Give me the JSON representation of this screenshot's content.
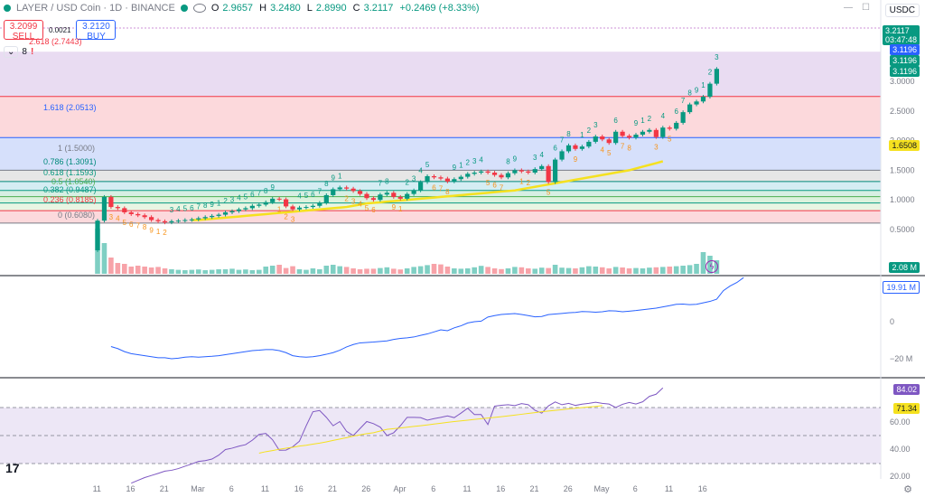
{
  "header": {
    "symbol": "LAYER / USD Coin · 1D · BINANCE",
    "o_label": "O",
    "o": "2.9657",
    "h_label": "H",
    "h": "3.2480",
    "l_label": "L",
    "l": "2.8990",
    "c_label": "C",
    "c": "3.2117",
    "change": "+0.2469 (+8.33%)"
  },
  "trade": {
    "sell_price": "3.2099",
    "sell_label": "SELL",
    "spread": "0.0021",
    "buy_price": "3.2120",
    "buy_label": "BUY"
  },
  "indicators_bar": {
    "count": "8",
    "alert": "!"
  },
  "currency": "USDC",
  "colors": {
    "up": "#089981",
    "down": "#f23645",
    "sma": "#f5e11f",
    "obv": "#2962ff",
    "rsi": "#7e57c2"
  },
  "price_tags": {
    "last": "3.2117",
    "countdown": "03:47:48",
    "t1": "3.1196",
    "t2": "3.1196",
    "t3": "3.1196",
    "sma": "1.6508",
    "volume": "2.08 M",
    "obv": "19.91 M",
    "rsi": "84.02",
    "rsi_ma": "71.34"
  },
  "fib_labels": {
    "l2618": "2.618 (2.7443)",
    "l1618": "1.618 (2.0513)",
    "l1": "1 (1.5000)",
    "l0786": "0.786 (1.3091)",
    "l0618": "0.618 (1.1593)",
    "l05": "0.5 (1.0540)",
    "l0382": "0.382 (0.9487)",
    "l0236": "0.236 (0.8185)",
    "l0": "0 (0.6080)"
  },
  "obv_axis": [
    "0",
    "−20 M"
  ],
  "rsi_axis": [
    "60.00",
    "40.00",
    "20.00"
  ],
  "chart_data": {
    "type": "candlestick",
    "title": "LAYER / USD Coin · 1D · BINANCE",
    "x_ticks": [
      "11",
      "16",
      "21",
      "Mar",
      "6",
      "11",
      "16",
      "21",
      "26",
      "Apr",
      "6",
      "11",
      "16",
      "21",
      "26",
      "May",
      "6",
      "11",
      "16"
    ],
    "y_ticks": [
      0.5,
      1.0,
      1.5,
      2.0,
      2.5,
      3.0
    ],
    "closes": [
      0.65,
      1.05,
      0.88,
      0.86,
      0.79,
      0.76,
      0.74,
      0.71,
      0.66,
      0.64,
      0.62,
      0.64,
      0.65,
      0.66,
      0.67,
      0.69,
      0.71,
      0.73,
      0.75,
      0.79,
      0.81,
      0.84,
      0.86,
      0.9,
      0.92,
      0.96,
      1.02,
      1.01,
      0.89,
      0.84,
      0.87,
      0.88,
      0.9,
      0.95,
      1.08,
      1.18,
      1.21,
      1.19,
      1.15,
      1.1,
      1.03,
      1.0,
      1.09,
      1.12,
      1.05,
      1.02,
      1.1,
      1.16,
      1.3,
      1.4,
      1.38,
      1.36,
      1.31,
      1.35,
      1.39,
      1.44,
      1.46,
      1.48,
      1.46,
      1.42,
      1.38,
      1.45,
      1.5,
      1.48,
      1.46,
      1.52,
      1.57,
      1.3,
      1.68,
      1.82,
      1.92,
      1.86,
      1.9,
      1.98,
      2.07,
      2.02,
      1.96,
      2.15,
      2.08,
      2.05,
      2.1,
      2.15,
      2.18,
      2.06,
      2.22,
      2.2,
      2.3,
      2.48,
      2.61,
      2.66,
      2.74,
      2.96,
      3.21
    ],
    "volume": [
      2.5,
      1.7,
      0.9,
      0.6,
      0.55,
      0.4,
      0.45,
      0.4,
      0.35,
      0.38,
      0.3,
      0.25,
      0.22,
      0.2,
      0.22,
      0.24,
      0.2,
      0.22,
      0.25,
      0.25,
      0.28,
      0.22,
      0.24,
      0.2,
      0.22,
      0.4,
      0.45,
      0.5,
      0.32,
      0.42,
      0.25,
      0.22,
      0.3,
      0.25,
      0.45,
      0.5,
      0.42,
      0.38,
      0.3,
      0.25,
      0.28,
      0.28,
      0.32,
      0.36,
      0.28,
      0.24,
      0.3,
      0.38,
      0.42,
      0.48,
      0.55,
      0.52,
      0.4,
      0.3,
      0.28,
      0.3,
      0.36,
      0.44,
      0.38,
      0.3,
      0.26,
      0.3,
      0.38,
      0.36,
      0.3,
      0.28,
      0.34,
      0.32,
      0.5,
      0.34,
      0.32,
      0.3,
      0.36,
      0.42,
      0.4,
      0.36,
      0.3,
      0.38,
      0.35,
      0.3,
      0.32,
      0.3,
      0.34,
      0.36,
      0.38,
      0.4,
      0.42,
      0.45,
      0.48,
      0.55,
      1.2,
      1.0,
      0.75
    ],
    "sma": {
      "start": 14,
      "values": [
        0.66,
        0.66,
        0.67,
        0.68,
        0.69,
        0.7,
        0.71,
        0.72,
        0.73,
        0.74,
        0.75,
        0.76,
        0.77,
        0.78,
        0.79,
        0.8,
        0.81,
        0.82,
        0.83,
        0.84,
        0.85,
        0.86,
        0.87,
        0.88,
        0.9,
        0.92,
        0.94,
        0.95,
        0.96,
        0.97,
        0.98,
        0.99,
        1.0,
        1.01,
        1.02,
        1.03,
        1.04,
        1.05,
        1.06,
        1.07,
        1.08,
        1.09,
        1.1,
        1.11,
        1.12,
        1.13,
        1.14,
        1.15,
        1.16,
        1.18,
        1.2,
        1.22,
        1.24,
        1.26,
        1.28,
        1.3,
        1.32,
        1.34,
        1.36,
        1.38,
        1.4,
        1.42,
        1.44,
        1.46,
        1.48,
        1.5,
        1.53,
        1.56,
        1.59,
        1.62,
        1.6508
      ]
    },
    "obv": {
      "start": 2,
      "values": [
        -14,
        -15,
        -16.5,
        -17.5,
        -18,
        -18.5,
        -19,
        -19.5,
        -19.5,
        -20,
        -19.7,
        -19.2,
        -19,
        -19.2,
        -19,
        -18.8,
        -18.5,
        -18,
        -17.5,
        -17,
        -16.5,
        -16,
        -15.8,
        -15.5,
        -15.5,
        -16,
        -17,
        -18.5,
        -19,
        -19.2,
        -19,
        -18.5,
        -17.8,
        -17,
        -15.8,
        -14.2,
        -13,
        -12.2,
        -12,
        -11.8,
        -11.5,
        -11.2,
        -10.5,
        -10,
        -9.7,
        -9.3,
        -8.5,
        -7.8,
        -6.8,
        -5.8,
        -6.2,
        -4.8,
        -3.8,
        -2.4,
        -1.8,
        -1.5,
        0.5,
        1.2,
        1.8,
        2,
        2.2,
        1.8,
        1.2,
        0.6,
        0.8,
        1.7,
        2,
        2.3,
        2.6,
        2.8,
        3.2,
        3.1,
        2.9,
        3.1,
        3.6,
        3.5,
        3.1,
        3.4,
        3.7,
        4.1,
        4.5,
        4.9,
        5.5,
        6.1,
        6.8,
        6.9,
        6.6,
        6.8,
        7.5,
        8.2,
        9.3,
        13.5,
        15.8,
        17.5,
        19.91
      ]
    },
    "rsi": {
      "start": 5,
      "values": [
        16,
        18,
        20,
        21.5,
        23,
        24.6,
        25.2,
        26.4,
        28.1,
        29.7,
        31.5,
        32.1,
        33.2,
        36,
        40,
        41,
        42.4,
        43.5,
        46.7,
        50.8,
        51.5,
        47,
        39.5,
        39.6,
        42,
        46,
        57,
        67,
        67.9,
        63,
        57,
        60,
        53,
        50,
        55,
        60,
        58.5,
        56,
        50,
        52,
        57,
        63,
        63,
        62.8,
        61,
        62.1,
        63,
        64,
        62.8,
        66,
        69.5,
        65,
        65,
        57.9,
        71,
        71.6,
        72,
        71.4,
        72.8,
        72,
        68,
        66,
        71.2,
        74,
        72,
        73,
        71.5,
        72.4,
        73,
        73.8,
        73,
        72.5,
        70,
        72.3,
        73.6,
        72.5,
        74.1,
        78,
        79.5,
        84.02
      ]
    },
    "rsi_ma": {
      "start": 24,
      "values": [
        37.4,
        38.5,
        39.3,
        40.2,
        41,
        41.6,
        42.5,
        43.1,
        43.9,
        44.6,
        45.5,
        46.5,
        47.5,
        48.5,
        49.6,
        50.5,
        51.4,
        52,
        53.2,
        54.4,
        54.9,
        55.4,
        56,
        56.5,
        57,
        57.6,
        58.2,
        58.8,
        59.4,
        60,
        60.5,
        61,
        61.5,
        62,
        62.5,
        63,
        63.5,
        64,
        64.6,
        65.2,
        65.8,
        66.4,
        67,
        67.5,
        68,
        68.5,
        69,
        69.5,
        70,
        70.4,
        70.8,
        71.34
      ]
    }
  }
}
